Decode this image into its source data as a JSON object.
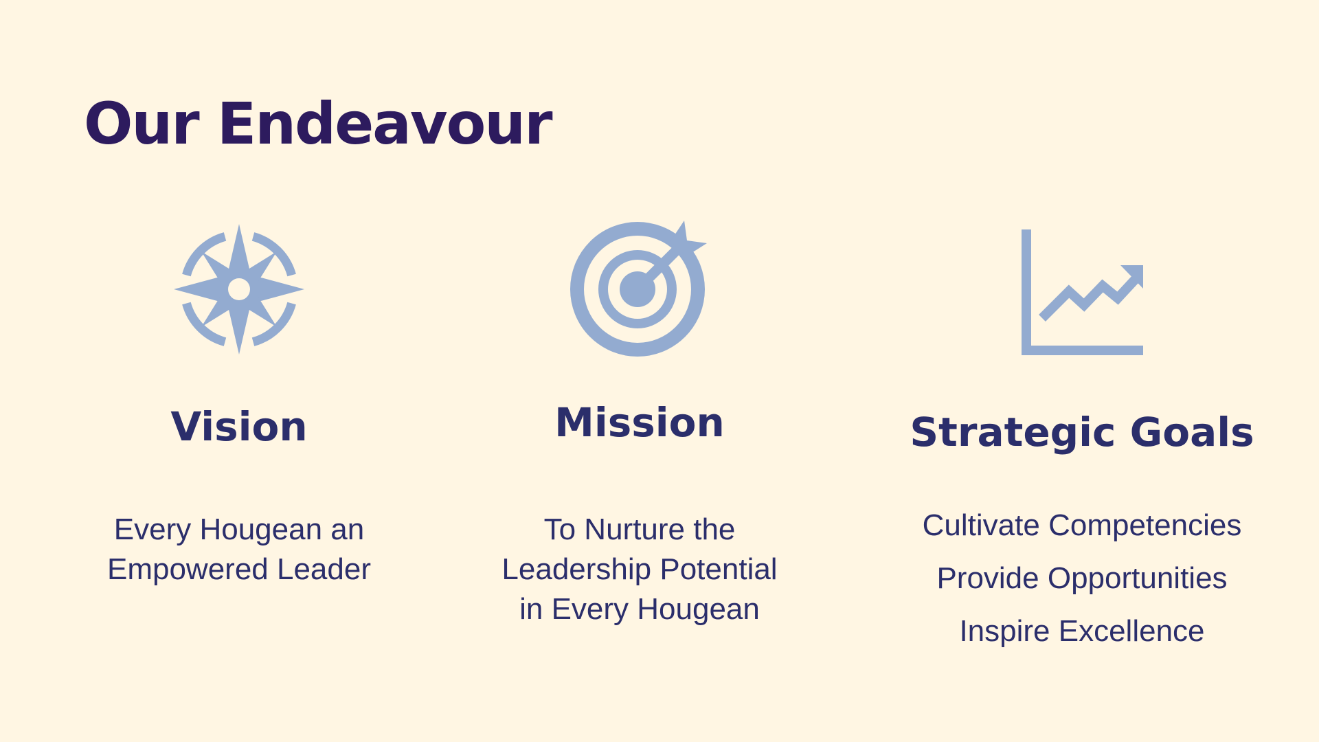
{
  "colors": {
    "background": "#FFF6E3",
    "title": "#2D1B5E",
    "heading": "#2B2E6B",
    "text": "#2B2E6B",
    "icon": "#93ABD0"
  },
  "title": "Our Endeavour",
  "columns": [
    {
      "icon": "compass-icon",
      "heading": "Vision",
      "lines": [
        "Every Hougean an",
        "Empowered Leader"
      ]
    },
    {
      "icon": "target-icon",
      "heading": "Mission",
      "lines": [
        "To Nurture the",
        "Leadership Potential",
        "in Every Hougean"
      ]
    },
    {
      "icon": "growth-chart-icon",
      "heading": "Strategic Goals",
      "items": [
        "Cultivate Competencies",
        "Provide Opportunities",
        "Inspire Excellence"
      ]
    }
  ]
}
